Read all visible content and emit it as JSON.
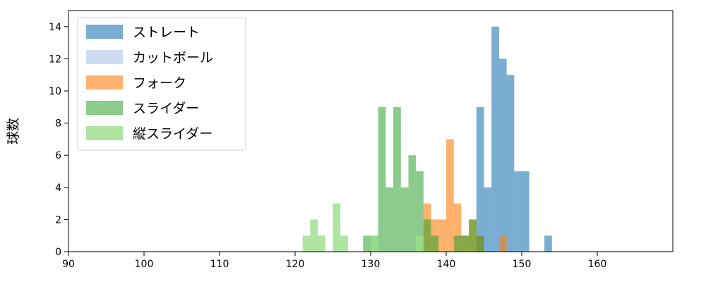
{
  "chart_data": {
    "type": "histogram",
    "title": "",
    "xlabel": "",
    "ylabel": "球数",
    "xlim": [
      90,
      170
    ],
    "ylim": [
      0,
      15
    ],
    "xticks": [
      90,
      100,
      110,
      120,
      130,
      140,
      150,
      160
    ],
    "yticks": [
      0,
      2,
      4,
      6,
      8,
      10,
      12,
      14
    ],
    "bin_width": 1,
    "grid": false,
    "legend_position": "upper-left",
    "series": [
      {
        "name": "ストレート",
        "color": "#1f77b4",
        "opacity": 0.6,
        "bins": [
          [
            144,
            9
          ],
          [
            145,
            4
          ],
          [
            146,
            14
          ],
          [
            147,
            12
          ],
          [
            148,
            11
          ],
          [
            149,
            5
          ],
          [
            150,
            5
          ],
          [
            153,
            1
          ]
        ]
      },
      {
        "name": "カットボール",
        "color": "#aec7e8",
        "opacity": 0.6,
        "bins": []
      },
      {
        "name": "フォーク",
        "color": "#ff7f0e",
        "opacity": 0.6,
        "bins": [
          [
            137,
            3
          ],
          [
            138,
            2
          ],
          [
            139,
            2
          ],
          [
            140,
            7
          ],
          [
            141,
            3
          ],
          [
            142,
            1
          ],
          [
            143,
            2
          ],
          [
            144,
            1
          ],
          [
            147,
            1
          ]
        ]
      },
      {
        "name": "スライダー",
        "color": "#2ca02c",
        "opacity": 0.55,
        "bins": [
          [
            129,
            1
          ],
          [
            130,
            1
          ],
          [
            131,
            9
          ],
          [
            132,
            4
          ],
          [
            133,
            9
          ],
          [
            134,
            4
          ],
          [
            135,
            6
          ],
          [
            136,
            5
          ],
          [
            137,
            2
          ],
          [
            138,
            1
          ],
          [
            141,
            1
          ],
          [
            142,
            1
          ],
          [
            143,
            2
          ],
          [
            144,
            1
          ]
        ]
      },
      {
        "name": "縦スライダー",
        "color": "#98df8a",
        "opacity": 0.8,
        "bins": [
          [
            121,
            1
          ],
          [
            122,
            2
          ],
          [
            123,
            1
          ],
          [
            125,
            3
          ],
          [
            126,
            1
          ],
          [
            130,
            1
          ],
          [
            136,
            1
          ]
        ]
      }
    ]
  }
}
